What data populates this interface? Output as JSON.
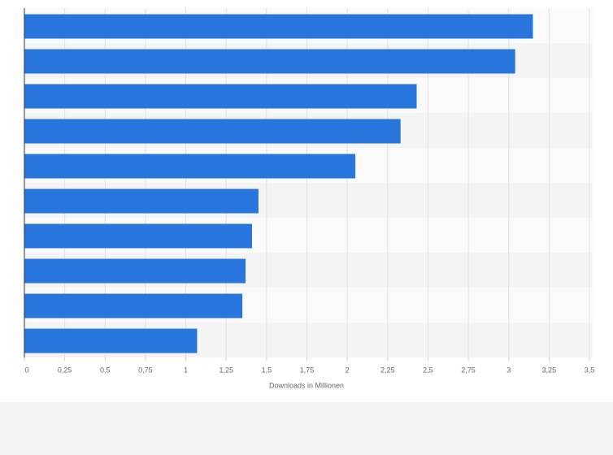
{
  "chart_data": {
    "type": "bar",
    "orientation": "horizontal",
    "categories": [
      null,
      null,
      null,
      null,
      null,
      null,
      null,
      null,
      null,
      null
    ],
    "values": [
      3.15,
      3.04,
      2.43,
      2.33,
      2.05,
      1.45,
      1.41,
      1.37,
      1.35,
      1.07
    ],
    "color": "#2876dd",
    "xlabel": "Downloads in Millionen",
    "xlim": [
      0,
      3.5
    ],
    "xticks": [
      0,
      {
        "value": 0.25,
        "label": "0,25"
      },
      {
        "value": 0.5,
        "label": "0,5"
      },
      {
        "value": 0.75,
        "label": "0,75"
      },
      1,
      {
        "value": 1.25,
        "label": "1,25"
      },
      {
        "value": 1.5,
        "label": "1,5"
      },
      {
        "value": 1.75,
        "label": "1,75"
      },
      2,
      {
        "value": 2.25,
        "label": "2,25"
      },
      {
        "value": 2.5,
        "label": "2,5"
      },
      {
        "value": 2.75,
        "label": "2,75"
      },
      3,
      {
        "value": 3.25,
        "label": "3,25"
      },
      {
        "value": 3.5,
        "label": "3,5"
      }
    ],
    "grid": true
  }
}
